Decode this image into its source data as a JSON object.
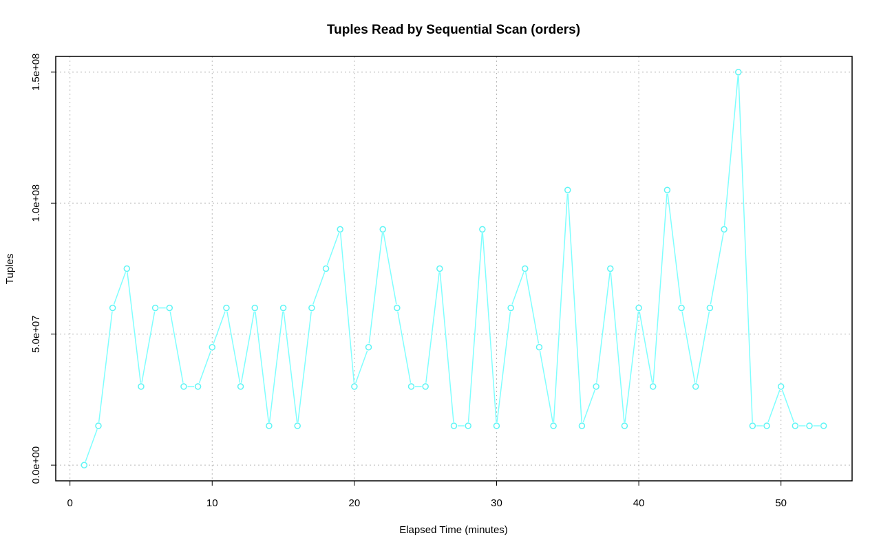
{
  "chart_data": {
    "type": "line",
    "title": "Tuples Read by Sequential Scan (orders)",
    "xlabel": "Elapsed Time (minutes)",
    "ylabel": "Tuples",
    "xlim": [
      -1,
      55
    ],
    "ylim": [
      -6000000,
      156000000
    ],
    "xticks": [
      0,
      10,
      20,
      30,
      40,
      50
    ],
    "xtick_labels": [
      "0",
      "10",
      "20",
      "30",
      "40",
      "50"
    ],
    "yticks": [
      0,
      50000000,
      100000000,
      150000000
    ],
    "ytick_labels": [
      "0.0e+00",
      "5.0e+07",
      "1.0e+08",
      "1.5e+08"
    ],
    "grid": true,
    "series_color": "#7fffff",
    "x": [
      1,
      2,
      3,
      4,
      5,
      6,
      7,
      8,
      9,
      10,
      11,
      12,
      13,
      14,
      15,
      16,
      17,
      18,
      19,
      20,
      21,
      22,
      23,
      24,
      25,
      26,
      27,
      28,
      29,
      30,
      31,
      32,
      33,
      34,
      35,
      36,
      37,
      38,
      39,
      40,
      41,
      42,
      43,
      44,
      45,
      46,
      47,
      48,
      49,
      50,
      51,
      52,
      53
    ],
    "y": [
      0,
      15000000,
      60000000,
      75000000,
      30000000,
      60000000,
      60000000,
      30000000,
      30000000,
      45000000,
      60000000,
      30000000,
      60000000,
      15000000,
      60000000,
      15000000,
      60000000,
      75000000,
      90000000,
      30000000,
      45000000,
      90000000,
      60000000,
      30000000,
      30000000,
      75000000,
      15000000,
      15000000,
      90000000,
      15000000,
      60000000,
      75000000,
      45000000,
      15000000,
      105000000,
      15000000,
      30000000,
      75000000,
      15000000,
      60000000,
      30000000,
      105000000,
      60000000,
      30000000,
      60000000,
      90000000,
      150000000,
      15000000,
      15000000,
      30000000,
      15000000,
      15000000,
      15000000
    ]
  }
}
